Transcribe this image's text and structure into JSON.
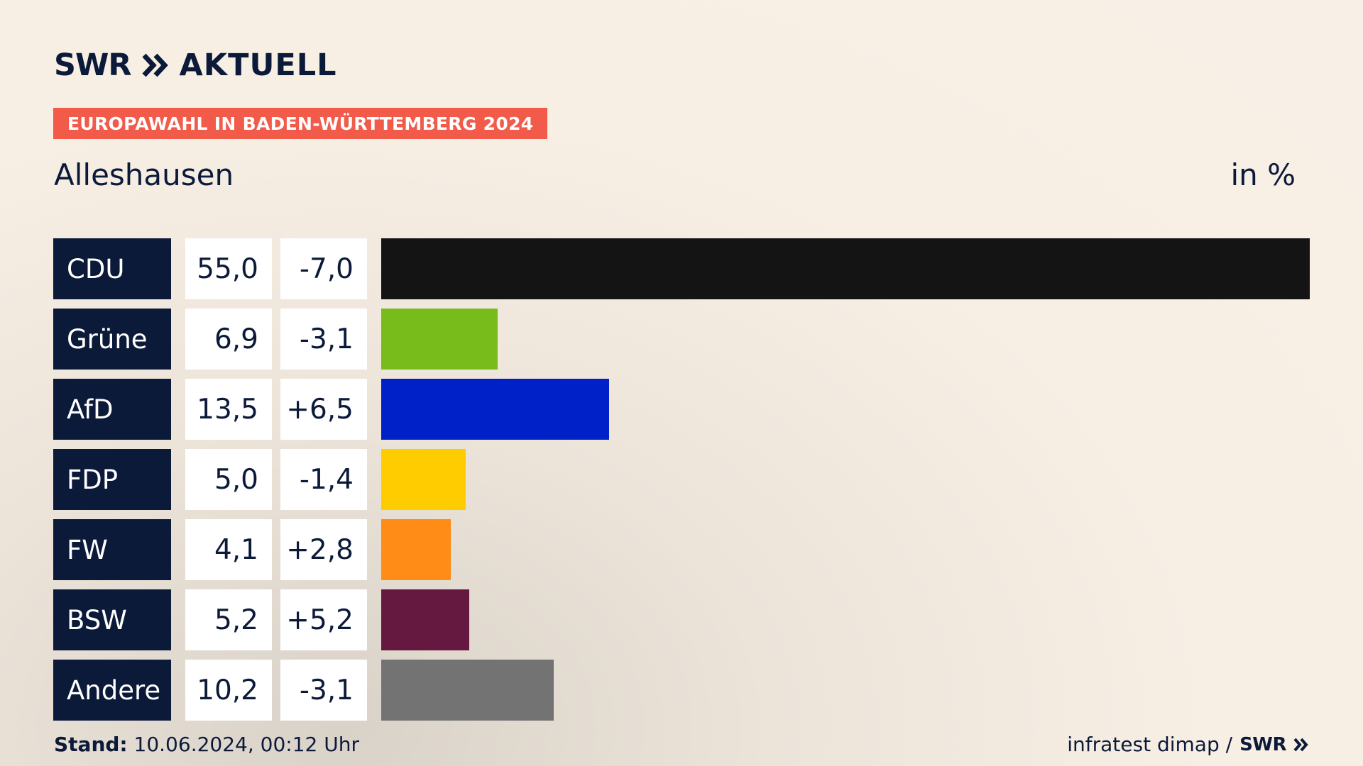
{
  "header": {
    "logo_left": "SWR",
    "logo_right": "AKTUELL",
    "badge": "EUROPAWAHL IN BADEN-WÜRTTEMBERG 2024"
  },
  "place": "Alleshausen",
  "unit": "in %",
  "chart_data": {
    "type": "bar",
    "orientation": "horizontal",
    "categories": [
      "CDU",
      "Grüne",
      "AfD",
      "FDP",
      "FW",
      "BSW",
      "Andere"
    ],
    "values": [
      55.0,
      6.9,
      13.5,
      5.0,
      4.1,
      5.2,
      10.2
    ],
    "value_labels": [
      "55,0",
      "6,9",
      "13,5",
      "5,0",
      "4,1",
      "5,2",
      "10,2"
    ],
    "diff_labels": [
      "-7,0",
      "-3,1",
      "+6,5",
      "-1,4",
      "+2,8",
      "+5,2",
      "-3,1"
    ],
    "colors": [
      "#141414",
      "#78bc1b",
      "#0021c8",
      "#ffcc00",
      "#ff8c17",
      "#651940",
      "#737373"
    ],
    "xlim": [
      0,
      55.0
    ]
  },
  "footer": {
    "stand_label": "Stand:",
    "stand_value": "10.06.2024, 00:12 Uhr",
    "source": "infratest dimap /",
    "source_logo": "SWR"
  }
}
